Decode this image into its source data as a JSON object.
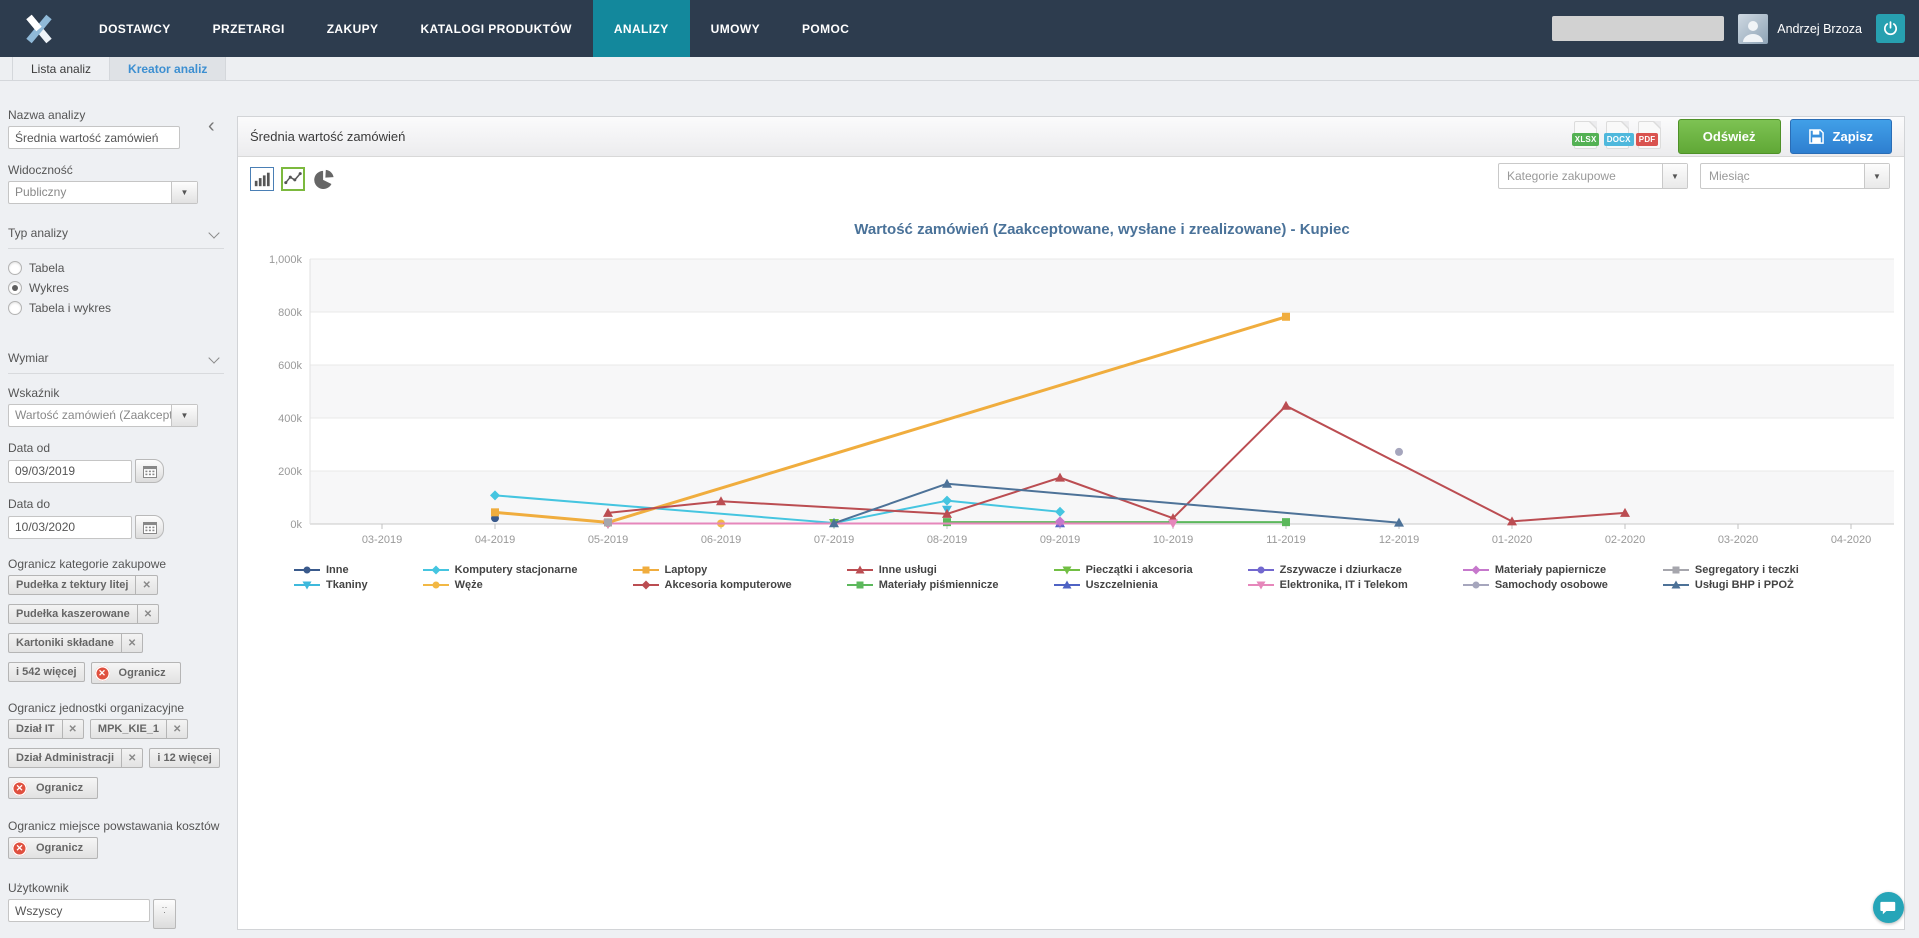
{
  "nav": {
    "items": [
      "DOSTAWCY",
      "PRZETARGI",
      "ZAKUPY",
      "KATALOGI PRODUKTÓW",
      "ANALIZY",
      "UMOWY",
      "POMOC"
    ],
    "active": "ANALIZY",
    "search_value": "",
    "user_name": "Andrzej Brzoza"
  },
  "tabs": [
    {
      "label": "Lista analiz",
      "active": false
    },
    {
      "label": "Kreator analiz",
      "active": true
    }
  ],
  "sidebar": {
    "nazwa_label": "Nazwa analizy",
    "nazwa_value": "Średnia wartość zamówień",
    "widocznosc_label": "Widoczność",
    "widocznosc_value": "Publiczny",
    "typ_label": "Typ analizy",
    "typ_options": [
      {
        "label": "Tabela",
        "selected": false
      },
      {
        "label": "Wykres",
        "selected": true
      },
      {
        "label": "Tabela i wykres",
        "selected": false
      }
    ],
    "wymiar_label": "Wymiar",
    "wskaznik_label": "Wskaźnik",
    "wskaznik_value": "Wartość zamówień (Zaakcept",
    "data_od_label": "Data od",
    "data_od_value": "09/03/2019",
    "data_do_label": "Data do",
    "data_do_value": "10/03/2020",
    "kategorie_label": "Ogranicz kategorie zakupowe",
    "kategorie_chips": [
      "Pudełka z tektury litej",
      "Pudełka kaszerowane",
      "Kartoniki składane"
    ],
    "kategorie_more": "i 542 więcej",
    "ogranicz_label": "Ogranicz",
    "jednostki_label": "Ogranicz jednostki organizacyjne",
    "jednostki_chips": [
      "Dział IT",
      "MPK_KIE_1",
      "Dział Administracji"
    ],
    "jednostki_more": "i 12 więcej",
    "mpk_label": "Ogranicz miejsce powstawania kosztów",
    "uzytkownik_label": "Użytkownik",
    "uzytkownik_value": "Wszyscy"
  },
  "panel": {
    "title": "Średnia wartość zamówień",
    "export": [
      "XLSX",
      "DOCX",
      "PDF"
    ],
    "export_colors": {
      "XLSX": "#54b154",
      "DOCX": "#4fb8dc",
      "PDF": "#d9534f"
    },
    "refresh_label": "Odśwież",
    "save_label": "Zapisz",
    "dim_dropdown": "Kategorie zakupowe",
    "period_dropdown": "Miesiąc"
  },
  "chart_data": {
    "type": "line",
    "title": "Wartość zamówień (Zaakceptowane, wysłane i zrealizowane) - Kupiec",
    "x": [
      "03-2019",
      "04-2019",
      "05-2019",
      "06-2019",
      "07-2019",
      "08-2019",
      "09-2019",
      "10-2019",
      "11-2019",
      "12-2019",
      "01-2020",
      "02-2020",
      "03-2020",
      "04-2020"
    ],
    "y_unit": "thousands",
    "ylim": [
      0,
      1000
    ],
    "yticks": [
      0,
      200,
      400,
      600,
      800,
      1000
    ],
    "ytick_labels": [
      "0k",
      "200k",
      "400k",
      "600k",
      "800k",
      "1,000k"
    ],
    "grid": true,
    "legend_position": "bottom",
    "series": [
      {
        "name": "Inne",
        "color": "#3a5a8c",
        "shape": "circle",
        "points": {
          "04-2019": 22
        }
      },
      {
        "name": "Tkaniny",
        "color": "#3eb9dc",
        "shape": "triangle-down",
        "points": {
          "08-2019": 54
        }
      },
      {
        "name": "Komputery stacjonarne",
        "color": "#45c5e0",
        "shape": "diamond",
        "points": {
          "04-2019": 108,
          "07-2019": 4,
          "08-2019": 88,
          "09-2019": 46
        }
      },
      {
        "name": "Węże",
        "color": "#f2b844",
        "shape": "circle",
        "points": {
          "06-2019": 2
        }
      },
      {
        "name": "Laptopy",
        "color": "#f0ad3e",
        "shape": "square",
        "points": {
          "04-2019": 44,
          "05-2019": 6,
          "11-2019": 782
        }
      },
      {
        "name": "Akcesoria komputerowe",
        "color": "#bb4d52",
        "shape": "diamond",
        "points": {
          "05-2019": 3
        }
      },
      {
        "name": "Inne usługi",
        "color": "#bb4d52",
        "shape": "triangle-up",
        "points": {
          "05-2019": 42,
          "06-2019": 86,
          "08-2019": 38,
          "09-2019": 175,
          "10-2019": 22,
          "11-2019": 446,
          "01-2020": 10,
          "02-2020": 42
        }
      },
      {
        "name": "Materiały piśmiennicze",
        "color": "#5cb85c",
        "shape": "square",
        "points": {
          "08-2019": 7,
          "11-2019": 7
        }
      },
      {
        "name": "Pieczątki i akcesoria",
        "color": "#72bf44",
        "shape": "triangle-down",
        "points": {
          "07-2019": 4
        }
      },
      {
        "name": "Uszczelnienia",
        "color": "#4f63c4",
        "shape": "triangle-up",
        "points": {
          "09-2019": 3
        }
      },
      {
        "name": "Zszywacze i dziurkacze",
        "color": "#7268cf",
        "shape": "circle",
        "points": {
          "09-2019": 3
        }
      },
      {
        "name": "Elektronika, IT i Telekom",
        "color": "#e687bb",
        "shape": "triangle-down",
        "points": {
          "05-2019": 2,
          "10-2019": 2
        }
      },
      {
        "name": "Materiały papiernicze",
        "color": "#c678cc",
        "shape": "diamond",
        "points": {
          "09-2019": 10
        }
      },
      {
        "name": "Samochody osobowe",
        "color": "#a6a6bd",
        "shape": "circle",
        "points": {
          "12-2019": 272
        }
      },
      {
        "name": "Segregatory i teczki",
        "color": "#a6a6ad",
        "shape": "square",
        "points": {
          "05-2019": 6
        }
      },
      {
        "name": "Usługi BHP i PPOŻ",
        "color": "#4d7298",
        "shape": "triangle-up",
        "points": {
          "07-2019": 3,
          "08-2019": 152,
          "12-2019": 5
        }
      }
    ]
  }
}
